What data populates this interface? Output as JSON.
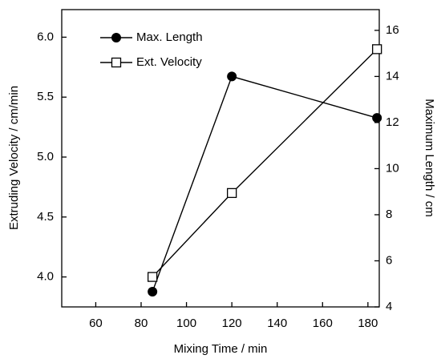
{
  "chart_data": {
    "type": "line",
    "x_label": "Mixing Time / min",
    "y_label": "Extruding Velocity / cm/min",
    "y2_label": "Maximum Length / cm",
    "x": [
      85,
      120,
      184
    ],
    "series": [
      {
        "name": "Max. Length",
        "color": "#000000",
        "marker": "circle",
        "axis": "y2",
        "values": [
          4.66,
          14.0,
          12.2
        ]
      },
      {
        "name": "Ext. Velocity",
        "color": "#000000",
        "marker": "square",
        "values": [
          4.0,
          4.7,
          5.9
        ]
      }
    ],
    "xlim": [
      45,
      185
    ],
    "xticks": [
      60,
      80,
      100,
      120,
      140,
      160,
      180
    ],
    "ylim": [
      3.75,
      6.23
    ],
    "yticks": [
      {
        "value": 4,
        "label": "4.0"
      },
      4.5,
      {
        "value": 5,
        "label": "5.0"
      },
      5.5,
      {
        "value": 6,
        "label": "6.0"
      }
    ],
    "y2lim": [
      4,
      16.9
    ],
    "y2ticks": [
      4,
      6,
      8,
      10,
      12,
      14,
      16
    ],
    "legend": "upper-left",
    "grid": false
  }
}
